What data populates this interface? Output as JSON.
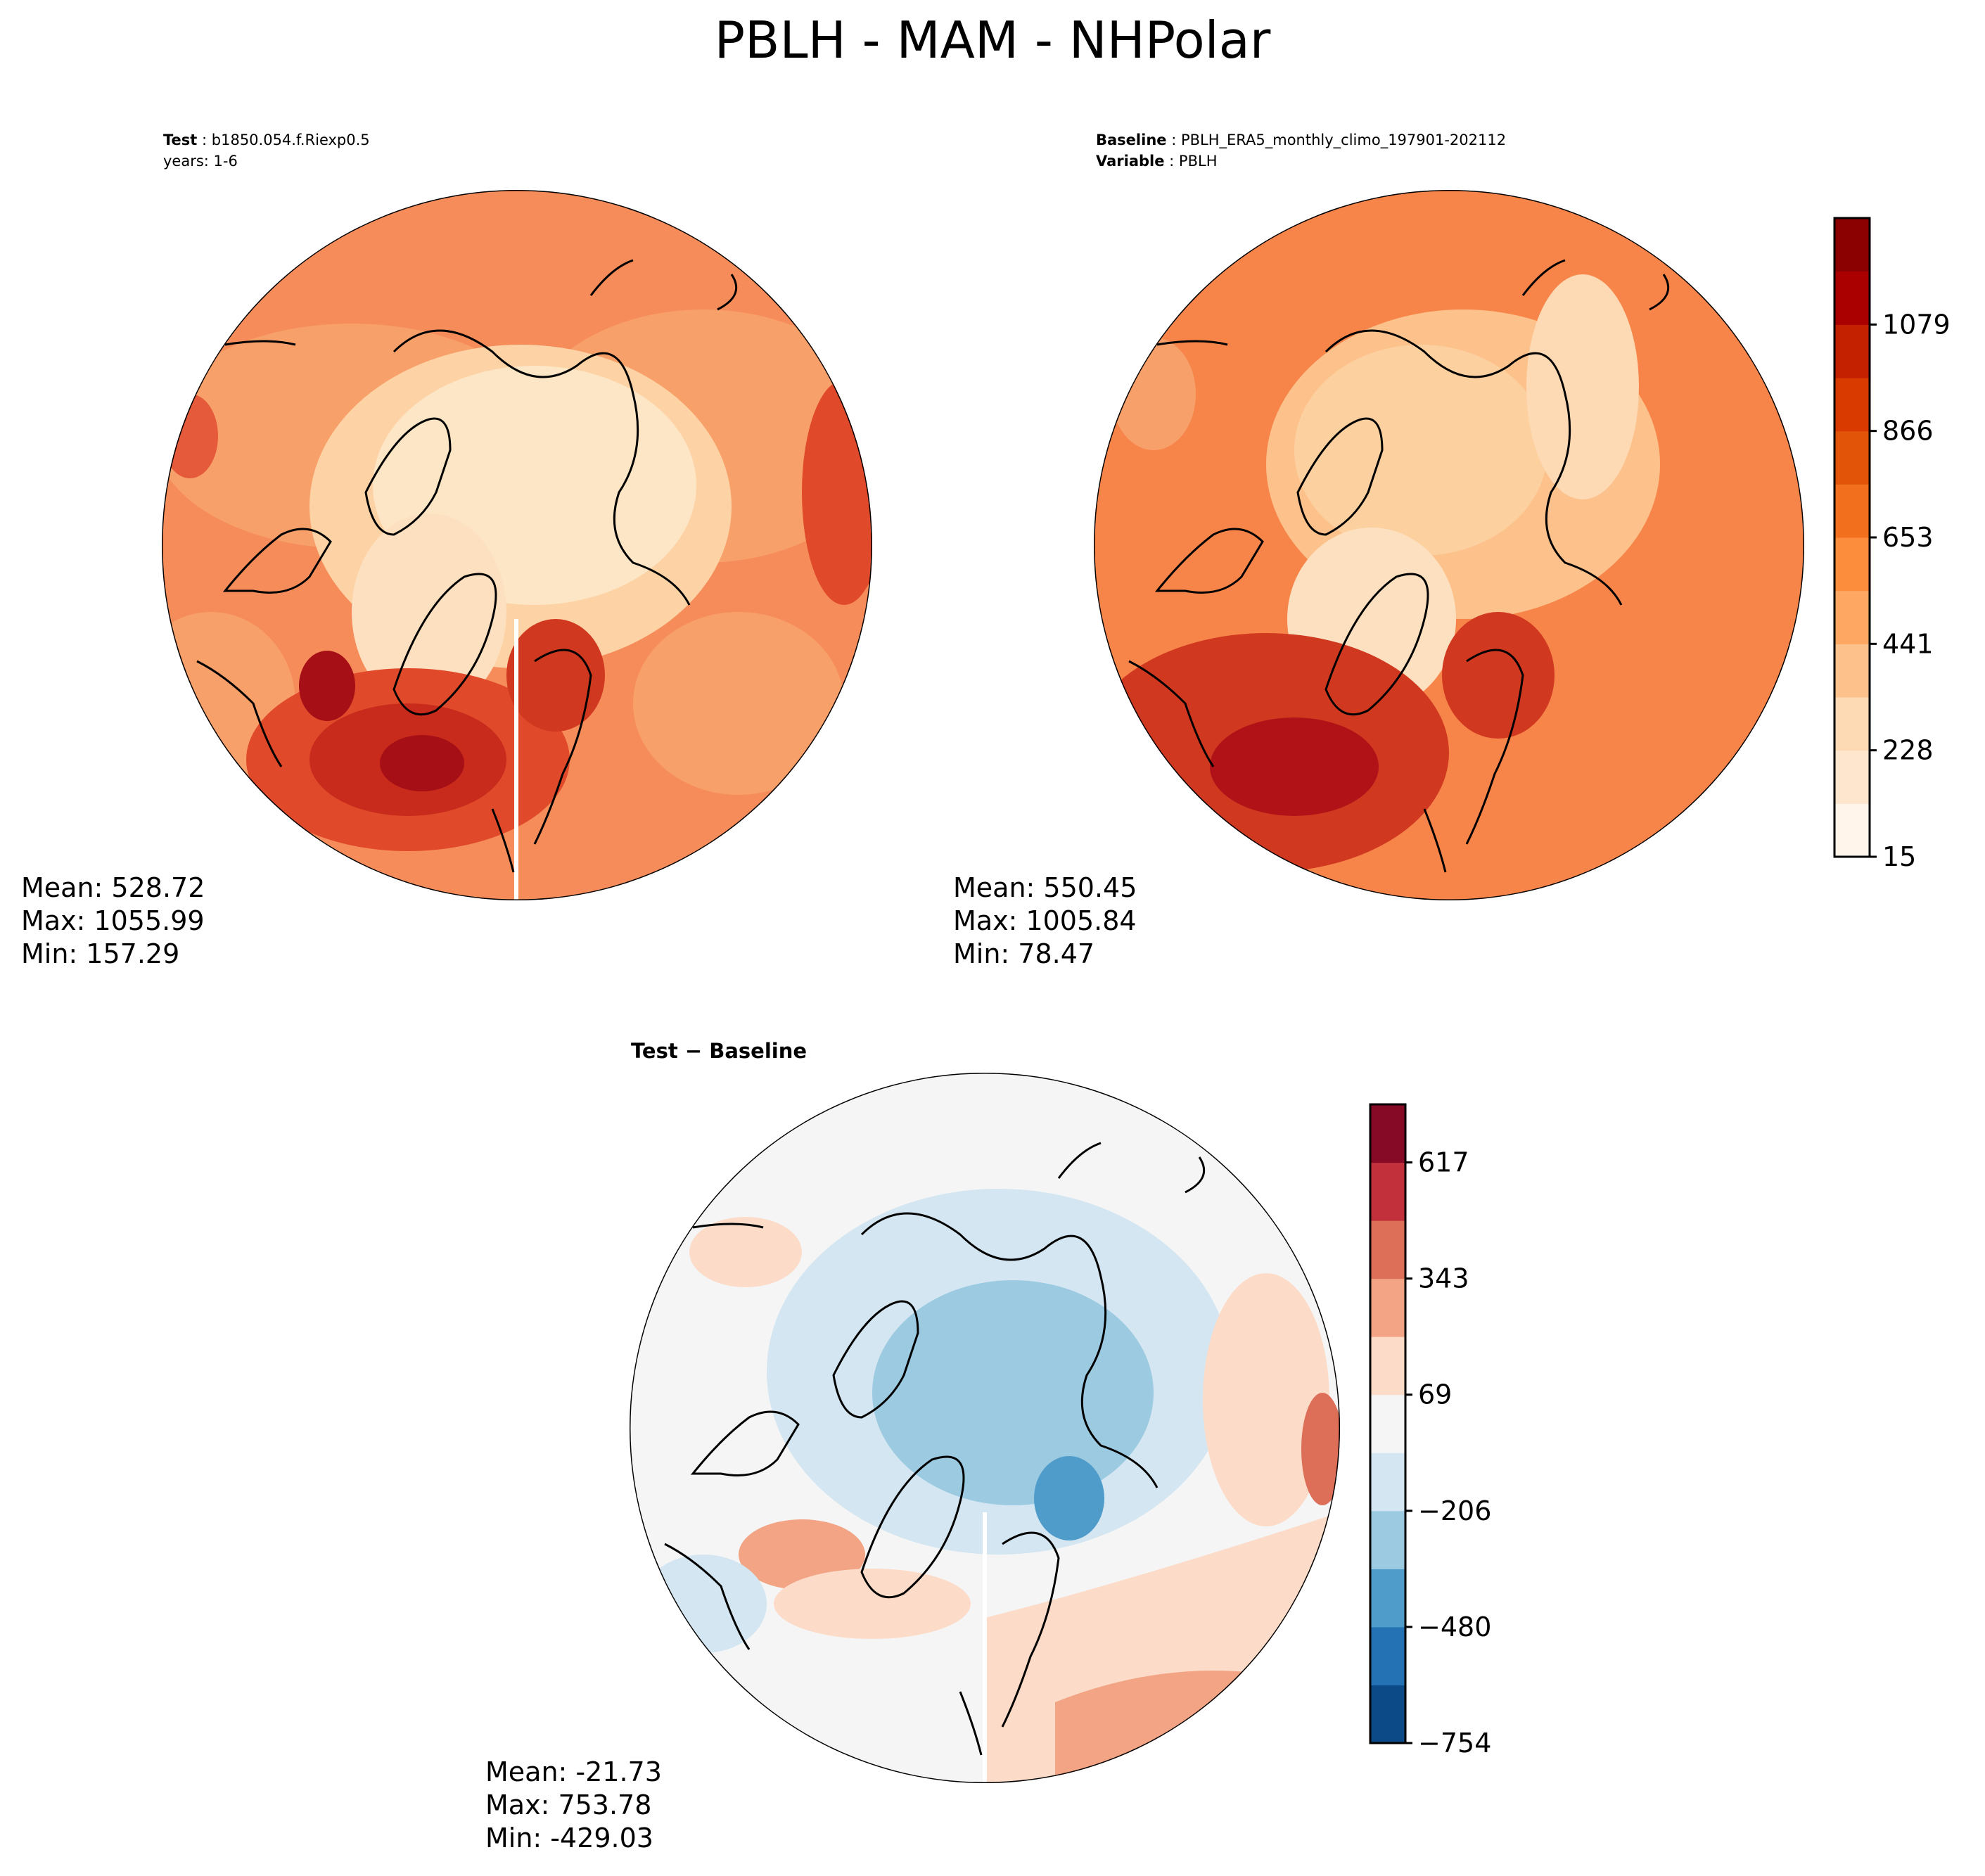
{
  "figure": {
    "title": "PBLH - MAM - NHPolar"
  },
  "panels": {
    "test": {
      "label_bold": "Test",
      "label_value": "b1850.054.f.Riexp0.5",
      "years": "years: 1-6",
      "stats": {
        "mean": "Mean: 528.72",
        "max": "Max: 1055.99",
        "min": "Min: 157.29"
      }
    },
    "baseline": {
      "label_bold": "Baseline",
      "label_value": "PBLH_ERA5_monthly_climo_197901-202112",
      "variable_bold": "Variable",
      "variable_value": "PBLH",
      "stats": {
        "mean": "Mean: 550.45",
        "max": "Max: 1005.84",
        "min": "Min: 78.47"
      }
    },
    "diff": {
      "label": "Test − Baseline",
      "stats": {
        "mean": "Mean: -21.73",
        "max": "Max: 753.78",
        "min": "Min: -429.03"
      }
    }
  },
  "colorbars": {
    "absolute": {
      "ticks": [
        "15",
        "228",
        "441",
        "653",
        "866",
        "1079"
      ],
      "colors": [
        "#fff5eb",
        "#fee6ce",
        "#fdd9b4",
        "#fdc28c",
        "#fda762",
        "#fb8d3d",
        "#f2701d",
        "#e25508",
        "#d93a00",
        "#c42100",
        "#ab0000",
        "#8b0000"
      ]
    },
    "difference": {
      "ticks": [
        "−754",
        "−480",
        "−206",
        "69",
        "343",
        "617"
      ],
      "colors": [
        "#0b4a86",
        "#2471b4",
        "#4f9ccb",
        "#9ccae1",
        "#d3e6f1",
        "#f5f5f5",
        "#fcdcc8",
        "#f2a484",
        "#dd6e57",
        "#c1303b",
        "#860a25"
      ]
    }
  },
  "map_colors": {
    "test_low": "#fde6c6",
    "test_mid": "#f8a06a",
    "test_high": "#e04a2a",
    "test_peak": "#a50f15",
    "base_low": "#fdd0a0",
    "base_mid": "#f7854a",
    "base_high": "#e0462a",
    "diff_neutral": "#f5f5f5",
    "diff_blue": "#d3e6f1",
    "diff_blue2": "#9ccae1",
    "diff_red": "#fcdcc8",
    "diff_red2": "#f2a484"
  }
}
